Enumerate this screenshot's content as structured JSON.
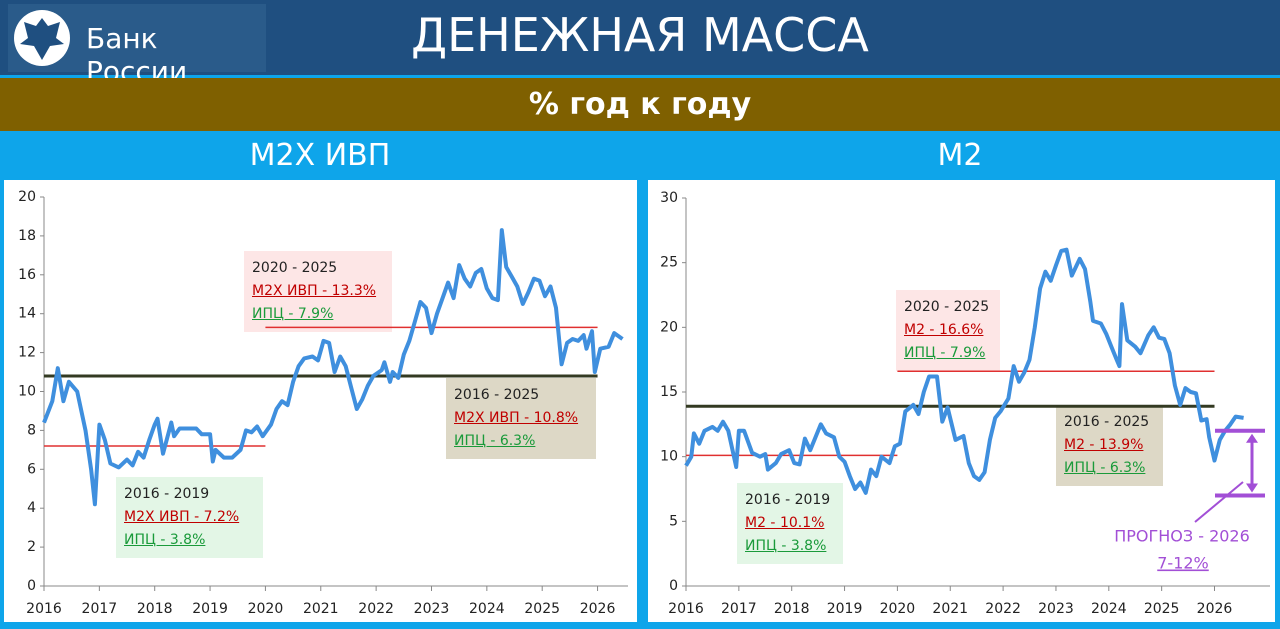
{
  "header": {
    "logo_text": "Банк России",
    "title": "ДЕНЕЖНАЯ МАССА",
    "subtitle": "% год к году"
  },
  "chart_data": [
    {
      "type": "line",
      "title": "М2Х ИВП",
      "xlim": [
        2016,
        2026.55
      ],
      "xticks": [
        2016,
        2017,
        2018,
        2019,
        2020,
        2021,
        2022,
        2023,
        2024,
        2025,
        2026
      ],
      "ylim": [
        0,
        20
      ],
      "yticks": [
        0,
        2,
        4,
        6,
        8,
        10,
        12,
        14,
        16,
        18,
        20
      ],
      "series": [
        {
          "color": "#3f8fde",
          "x": [
            2016.0,
            2016.15,
            2016.25,
            2016.35,
            2016.45,
            2016.6,
            2016.75,
            2016.85,
            2016.92,
            2017.0,
            2017.1,
            2017.2,
            2017.35,
            2017.5,
            2017.6,
            2017.7,
            2017.8,
            2017.9,
            2018.0,
            2018.05,
            2018.15,
            2018.3,
            2018.35,
            2018.45,
            2018.6,
            2018.75,
            2018.85,
            2019.0,
            2019.05,
            2019.1,
            2019.25,
            2019.4,
            2019.55,
            2019.65,
            2019.75,
            2019.85,
            2019.95,
            2020.1,
            2020.2,
            2020.3,
            2020.4,
            2020.5,
            2020.6,
            2020.7,
            2020.85,
            2020.95,
            2021.05,
            2021.15,
            2021.25,
            2021.35,
            2021.45,
            2021.55,
            2021.65,
            2021.75,
            2021.85,
            2021.95,
            2022.1,
            2022.15,
            2022.25,
            2022.3,
            2022.4,
            2022.5,
            2022.6,
            2022.7,
            2022.8,
            2022.9,
            2023.0,
            2023.1,
            2023.2,
            2023.3,
            2023.4,
            2023.5,
            2023.6,
            2023.7,
            2023.8,
            2023.9,
            2024.0,
            2024.1,
            2024.2,
            2024.27,
            2024.35,
            2024.45,
            2024.55,
            2024.65,
            2024.75,
            2024.85,
            2024.95,
            2025.05,
            2025.15,
            2025.25,
            2025.35,
            2025.45,
            2025.55,
            2025.65,
            2025.75,
            2025.8,
            2025.9,
            2025.95,
            2026.05,
            2026.2,
            2026.3,
            2026.45
          ],
          "values": [
            8.4,
            9.5,
            11.2,
            9.5,
            10.5,
            10.0,
            8.0,
            6.0,
            4.2,
            8.3,
            7.5,
            6.3,
            6.1,
            6.5,
            6.2,
            6.9,
            6.6,
            7.5,
            8.3,
            8.6,
            6.8,
            8.4,
            7.7,
            8.1,
            8.1,
            8.1,
            7.8,
            7.8,
            6.4,
            7.0,
            6.6,
            6.6,
            7.0,
            8.0,
            7.9,
            8.2,
            7.7,
            8.3,
            9.1,
            9.5,
            9.3,
            10.5,
            11.3,
            11.7,
            11.8,
            11.6,
            12.6,
            12.5,
            11.0,
            11.8,
            11.3,
            10.2,
            9.1,
            9.6,
            10.3,
            10.8,
            11.1,
            11.5,
            10.5,
            11.0,
            10.7,
            11.9,
            12.6,
            13.6,
            14.6,
            14.3,
            13.0,
            14.0,
            14.8,
            15.6,
            14.8,
            16.5,
            15.8,
            15.4,
            16.1,
            16.3,
            15.3,
            14.8,
            14.7,
            18.3,
            16.4,
            15.9,
            15.4,
            14.5,
            15.1,
            15.8,
            15.7,
            14.9,
            15.4,
            14.3,
            11.4,
            12.5,
            12.7,
            12.6,
            12.9,
            12.2,
            13.1,
            11.0,
            12.2,
            12.3,
            13.0,
            12.7
          ]
        }
      ],
      "reference_lines": [
        {
          "value": 7.2,
          "from": 2016,
          "to": 2020,
          "color": "#e03030"
        },
        {
          "value": 13.3,
          "from": 2020,
          "to": 2026,
          "color": "#e03030"
        },
        {
          "value": 10.8,
          "from": 2016,
          "to": 2026,
          "color": "#333a22"
        }
      ],
      "annotations": [
        {
          "lines": [
            "2016 - 2019",
            "М2Х ИВП - 7.2%",
            "ИПЦ - 3.8%"
          ],
          "color": "#e3f6e6"
        },
        {
          "lines": [
            "2020 - 2025",
            "М2Х ИВП - 13.3%",
            "ИПЦ - 7.9%"
          ],
          "color": "#fde6e6"
        },
        {
          "lines": [
            "2016 - 2025",
            "М2Х ИВП - 10.8%",
            "ИПЦ - 6.3%"
          ],
          "color": "#ddd8c6"
        }
      ]
    },
    {
      "type": "line",
      "title": "М2",
      "xlim": [
        2016,
        2027.05
      ],
      "xticks": [
        2016,
        2017,
        2018,
        2019,
        2020,
        2021,
        2022,
        2023,
        2024,
        2025,
        2026
      ],
      "ylim": [
        0,
        30
      ],
      "yticks": [
        0,
        5,
        10,
        15,
        20,
        25,
        30
      ],
      "series": [
        {
          "color": "#3f8fde",
          "x": [
            2016.0,
            2016.1,
            2016.15,
            2016.25,
            2016.35,
            2016.5,
            2016.6,
            2016.7,
            2016.8,
            2016.95,
            2017.0,
            2017.1,
            2017.25,
            2017.4,
            2017.5,
            2017.55,
            2017.7,
            2017.8,
            2017.95,
            2018.05,
            2018.15,
            2018.25,
            2018.35,
            2018.45,
            2018.55,
            2018.65,
            2018.8,
            2018.9,
            2019.0,
            2019.1,
            2019.2,
            2019.3,
            2019.4,
            2019.5,
            2019.6,
            2019.7,
            2019.85,
            2019.95,
            2020.05,
            2020.15,
            2020.3,
            2020.4,
            2020.5,
            2020.6,
            2020.75,
            2020.85,
            2020.95,
            2021.1,
            2021.25,
            2021.35,
            2021.45,
            2021.55,
            2021.65,
            2021.75,
            2021.85,
            2021.95,
            2022.1,
            2022.2,
            2022.3,
            2022.4,
            2022.5,
            2022.6,
            2022.7,
            2022.8,
            2022.9,
            2023.0,
            2023.1,
            2023.2,
            2023.3,
            2023.45,
            2023.55,
            2023.65,
            2023.7,
            2023.85,
            2023.95,
            2024.05,
            2024.15,
            2024.2,
            2024.25,
            2024.35,
            2024.5,
            2024.6,
            2024.75,
            2024.85,
            2024.95,
            2025.05,
            2025.15,
            2025.25,
            2025.35,
            2025.45,
            2025.55,
            2025.65,
            2025.75,
            2025.85,
            2025.9,
            2026.0,
            2026.1,
            2026.2,
            2026.3,
            2026.4,
            2026.55
          ],
          "values": [
            9.3,
            10.0,
            11.8,
            11.0,
            12.0,
            12.3,
            12.0,
            12.7,
            12.0,
            9.2,
            12.0,
            12.0,
            10.3,
            10.0,
            10.2,
            9.0,
            9.5,
            10.2,
            10.5,
            9.5,
            9.4,
            11.4,
            10.5,
            11.5,
            12.5,
            11.8,
            11.5,
            10.0,
            9.6,
            8.5,
            7.5,
            8.0,
            7.2,
            9.0,
            8.5,
            10.0,
            9.5,
            10.8,
            11.0,
            13.5,
            14.0,
            13.3,
            15.0,
            16.2,
            16.2,
            12.7,
            13.8,
            11.3,
            11.6,
            9.5,
            8.5,
            8.2,
            8.8,
            11.3,
            13.0,
            13.5,
            14.5,
            17.0,
            15.8,
            16.5,
            17.5,
            20.0,
            23.0,
            24.3,
            23.6,
            24.8,
            25.9,
            26.0,
            24.0,
            25.3,
            24.5,
            22.0,
            20.5,
            20.3,
            19.5,
            18.5,
            17.5,
            17.0,
            21.8,
            19.0,
            18.5,
            18.0,
            19.4,
            20.0,
            19.2,
            19.1,
            18.0,
            15.5,
            14.0,
            15.3,
            15.0,
            14.9,
            12.8,
            12.9,
            11.5,
            9.7,
            11.3,
            12.0,
            12.5,
            13.1,
            13.0
          ]
        }
      ],
      "reference_lines": [
        {
          "value": 10.1,
          "from": 2016,
          "to": 2020,
          "color": "#e03030"
        },
        {
          "value": 16.6,
          "from": 2020,
          "to": 2026,
          "color": "#e03030"
        },
        {
          "value": 13.9,
          "from": 2016,
          "to": 2026,
          "color": "#333a22"
        }
      ],
      "annotations": [
        {
          "lines": [
            "2016 - 2019",
            "М2 - 10.1%",
            "ИПЦ - 3.8%"
          ],
          "color": "#e3f6e6"
        },
        {
          "lines": [
            "2020 - 2025",
            "М2 - 16.6%",
            "ИПЦ - 7.9%"
          ],
          "color": "#fde6e6"
        },
        {
          "lines": [
            "2016 - 2025",
            "М2 - 13.9%",
            "ИПЦ - 6.3%"
          ],
          "color": "#ddd8c6"
        }
      ],
      "forecast": {
        "label": "ПРОГНОЗ - 2026",
        "range_label": "7-12%",
        "low": 7,
        "high": 12,
        "color": "#a24fd6"
      }
    }
  ]
}
